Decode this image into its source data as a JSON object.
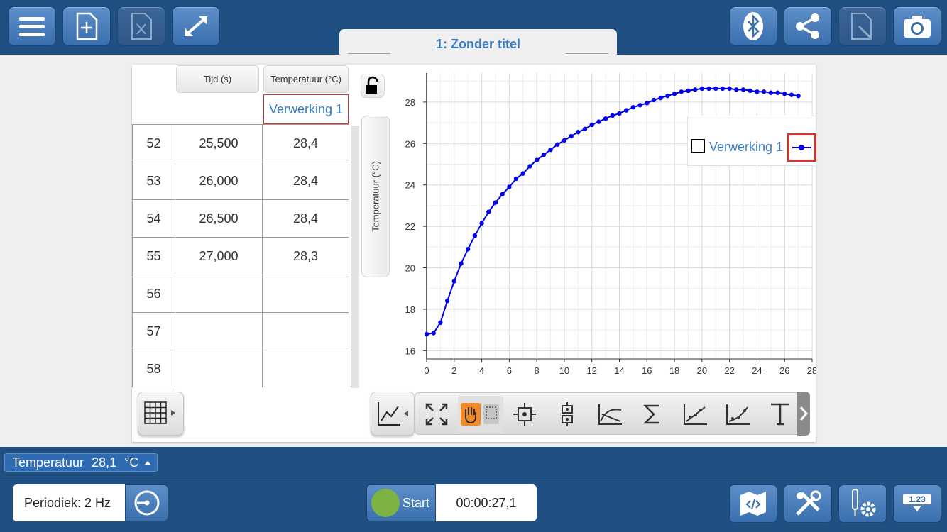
{
  "document": {
    "title": "1: Zonder titel"
  },
  "table": {
    "columns": [
      "Tijd (s)",
      "Temperatuur (°C)"
    ],
    "run_label": "Verwerking 1",
    "rows": [
      {
        "index": "52",
        "time": "25,500",
        "value": "28,4"
      },
      {
        "index": "53",
        "time": "26,000",
        "value": "28,4"
      },
      {
        "index": "54",
        "time": "26,500",
        "value": "28,4"
      },
      {
        "index": "55",
        "time": "27,000",
        "value": "28,3"
      },
      {
        "index": "56",
        "time": "",
        "value": ""
      },
      {
        "index": "57",
        "time": "",
        "value": ""
      },
      {
        "index": "58",
        "time": "",
        "value": ""
      }
    ]
  },
  "graph": {
    "y_axis_button": "Temperatuur (°C)",
    "legend_label": "Verwerking 1"
  },
  "chart_data": {
    "type": "line",
    "xlim": [
      0,
      28
    ],
    "ylim": [
      15.6,
      29.4
    ],
    "xticks": [
      "0",
      "2",
      "4",
      "6",
      "8",
      "10",
      "12",
      "14",
      "16",
      "18",
      "20",
      "22",
      "24",
      "26",
      "28"
    ],
    "yticks": [
      "16",
      "18",
      "20",
      "22",
      "24",
      "26",
      "28"
    ],
    "series": [
      {
        "name": "Verwerking 1",
        "color": "#0000ee",
        "x": [
          0,
          0.5,
          1,
          1.5,
          2,
          2.5,
          3,
          3.5,
          4,
          4.5,
          5,
          5.5,
          6,
          6.5,
          7,
          7.5,
          8,
          8.5,
          9,
          9.5,
          10,
          10.5,
          11,
          11.5,
          12,
          12.5,
          13,
          13.5,
          14,
          14.5,
          15,
          15.5,
          16,
          16.5,
          17,
          17.5,
          18,
          18.5,
          19,
          19.5,
          20,
          20.5,
          21,
          21.5,
          22,
          22.5,
          23,
          23.5,
          24,
          24.5,
          25,
          25.5,
          26,
          26.5,
          27
        ],
        "y": [
          16.8,
          16.85,
          17.35,
          18.4,
          19.35,
          20.2,
          20.9,
          21.55,
          22.15,
          22.7,
          23.15,
          23.55,
          23.9,
          24.3,
          24.55,
          24.9,
          25.2,
          25.45,
          25.7,
          25.95,
          26.15,
          26.35,
          26.55,
          26.7,
          26.9,
          27.05,
          27.2,
          27.35,
          27.45,
          27.6,
          27.75,
          27.85,
          27.95,
          28.1,
          28.2,
          28.3,
          28.4,
          28.5,
          28.55,
          28.6,
          28.65,
          28.65,
          28.65,
          28.65,
          28.65,
          28.6,
          28.6,
          28.55,
          28.5,
          28.5,
          28.45,
          28.45,
          28.4,
          28.35,
          28.3
        ]
      }
    ]
  },
  "status": {
    "sensor_label": "Temperatuur",
    "sensor_value": "28,1",
    "sensor_unit": "°C",
    "mode": "Periodiek: 2 Hz",
    "start_label": "Start",
    "timer": "00:00:27,1",
    "meter_label": "1.23"
  },
  "colors": {
    "bar": "#204f82",
    "accent": "#3b7dc4",
    "button": "#4a80bf",
    "start": "#7cb342",
    "highlight": "#d0342c"
  }
}
